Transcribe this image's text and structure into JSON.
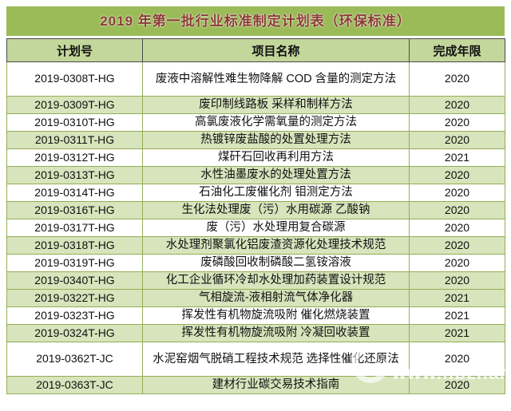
{
  "title": "2019 年第一批行业标准制定计划表（环保标准）",
  "columns": [
    "计划号",
    "项目名称",
    "完成年限"
  ],
  "rows": [
    {
      "plan_no": "2019-0308T-HG",
      "project": "废液中溶解性难生物降解 COD 含量的测定方法",
      "year": "2020",
      "shaded": false,
      "tall": true
    },
    {
      "plan_no": "2019-0309T-HG",
      "project": "废印制线路板 采样和制样方法",
      "year": "2020",
      "shaded": true,
      "tall": false
    },
    {
      "plan_no": "2019-0310T-HG",
      "project": "高氯废液化学需氧量的测定方法",
      "year": "2020",
      "shaded": false,
      "tall": false
    },
    {
      "plan_no": "2019-0311T-HG",
      "project": "热镀锌废盐酸的处置处理方法",
      "year": "2020",
      "shaded": true,
      "tall": false
    },
    {
      "plan_no": "2019-0312T-HG",
      "project": "煤矸石回收再利用方法",
      "year": "2021",
      "shaded": false,
      "tall": false
    },
    {
      "plan_no": "2019-0313T-HG",
      "project": "水性油墨废水的处理处置方法",
      "year": "2020",
      "shaded": true,
      "tall": false
    },
    {
      "plan_no": "2019-0314T-HG",
      "project": "石油化工废催化剂 钼测定方法",
      "year": "2020",
      "shaded": false,
      "tall": false
    },
    {
      "plan_no": "2019-0316T-HG",
      "project": "生化法处理废（污）水用碳源 乙酸钠",
      "year": "2020",
      "shaded": true,
      "tall": false
    },
    {
      "plan_no": "2019-0317T-HG",
      "project": "废（污）水处理用复合碳源",
      "year": "2020",
      "shaded": false,
      "tall": false
    },
    {
      "plan_no": "2019-0318T-HG",
      "project": "水处理剂聚氯化铝废渣资源化处理技术规范",
      "year": "2020",
      "shaded": true,
      "tall": false
    },
    {
      "plan_no": "2019-0319T-HG",
      "project": "废磷酸回收制磷酸二氢铵溶液",
      "year": "2020",
      "shaded": false,
      "tall": false
    },
    {
      "plan_no": "2019-0340T-HG",
      "project": "化工企业循环冷却水处理加药装置设计规范",
      "year": "2020",
      "shaded": true,
      "tall": false
    },
    {
      "plan_no": "2019-0322T-HG",
      "project": "气相旋流-液相射流气体净化器",
      "year": "2021",
      "shaded": true,
      "tall": false
    },
    {
      "plan_no": "2019-0323T-HG",
      "project": "挥发性有机物旋流吸附 催化燃烧装置",
      "year": "2021",
      "shaded": false,
      "tall": false
    },
    {
      "plan_no": "2019-0324T-HG",
      "project": "挥发性有机物旋流吸附 冷凝回收装置",
      "year": "2021",
      "shaded": true,
      "tall": false
    },
    {
      "plan_no": "2019-0362T-JC",
      "project": "水泥窑烟气脱硝工程技术规范 选择性催化还原法",
      "year": "2020",
      "shaded": false,
      "tall": true
    },
    {
      "plan_no": "2019-0363T-JC",
      "project": "建材行业碳交易技术指南",
      "year": "2020",
      "shaded": true,
      "tall": false
    }
  ],
  "watermark": {
    "text": "www.hbzhan.com"
  },
  "colors": {
    "title_bg": "#9bbb59",
    "title_text": "#8b3a34",
    "header_bg": "#c3d69b",
    "band_bg": "#d7e4bc",
    "grid_border": "#94ae55",
    "header_border": "#4a4a4a"
  }
}
